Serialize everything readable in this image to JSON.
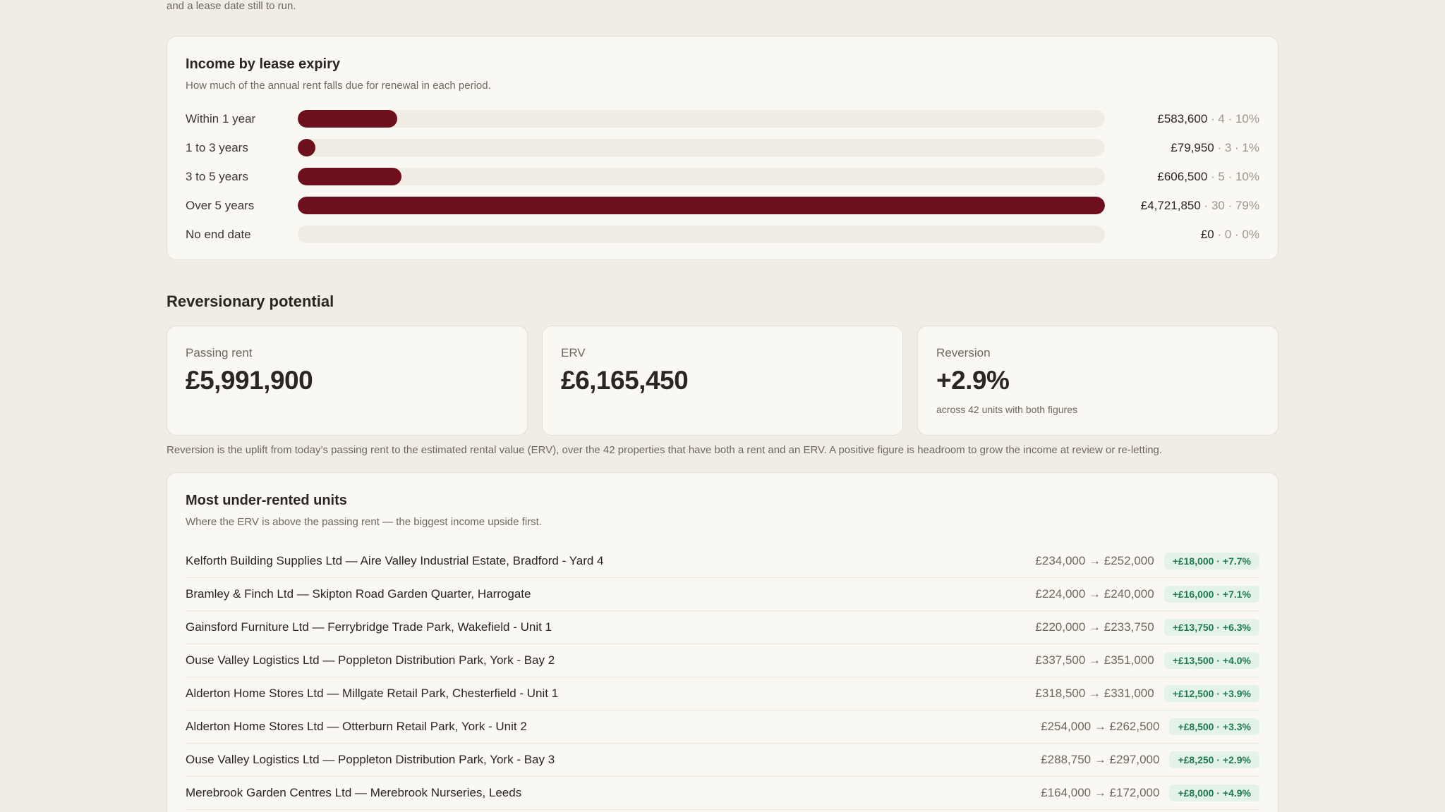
{
  "intro_text": "and a lease date still to run.",
  "income": {
    "title": "Income by lease expiry",
    "subtitle": "How much of the annual rent falls due for renewal in each period.",
    "rows": [
      {
        "label": "Within 1 year",
        "amount": "£583,600",
        "count": "4",
        "pct": "10%",
        "fraction": 0.1236
      },
      {
        "label": "1 to 3 years",
        "amount": "£79,950",
        "count": "3",
        "pct": "1%",
        "fraction": 0.0169
      },
      {
        "label": "3 to 5 years",
        "amount": "£606,500",
        "count": "5",
        "pct": "10%",
        "fraction": 0.1285
      },
      {
        "label": "Over 5 years",
        "amount": "£4,721,850",
        "count": "30",
        "pct": "79%",
        "fraction": 1.0
      },
      {
        "label": "No end date",
        "amount": "£0",
        "count": "0",
        "pct": "0%",
        "fraction": 0
      }
    ],
    "bar_color": "#6e0f1e"
  },
  "reversion": {
    "title": "Reversionary potential",
    "cards": [
      {
        "label": "Passing rent",
        "value": "£5,991,900",
        "note": ""
      },
      {
        "label": "ERV",
        "value": "£6,165,450",
        "note": ""
      },
      {
        "label": "Reversion",
        "value": "+2.9%",
        "note": "across 42 units with both figures"
      }
    ],
    "footnote": "Reversion is the uplift from today’s passing rent to the estimated rental value (ERV), over the 42 properties that have both a rent and an ERV. A positive figure is headroom to grow the income at review or re-letting."
  },
  "under_rented": {
    "title": "Most under-rented units",
    "subtitle": "Where the ERV is above the passing rent — the biggest income upside first.",
    "units": [
      {
        "name": "Kelforth Building Supplies Ltd — Aire Valley Industrial Estate, Bradford - Yard 4",
        "rent": "£234,000 → £252,000",
        "uplift": "+£18,000 · +7.7%"
      },
      {
        "name": "Bramley & Finch Ltd — Skipton Road Garden Quarter, Harrogate",
        "rent": "£224,000 → £240,000",
        "uplift": "+£16,000 · +7.1%"
      },
      {
        "name": "Gainsford Furniture Ltd — Ferrybridge Trade Park, Wakefield - Unit 1",
        "rent": "£220,000 → £233,750",
        "uplift": "+£13,750 · +6.3%"
      },
      {
        "name": "Ouse Valley Logistics Ltd — Poppleton Distribution Park, York - Bay 2",
        "rent": "£337,500 → £351,000",
        "uplift": "+£13,500 · +4.0%"
      },
      {
        "name": "Alderton Home Stores Ltd — Millgate Retail Park, Chesterfield - Unit 1",
        "rent": "£318,500 → £331,000",
        "uplift": "+£12,500 · +3.9%"
      },
      {
        "name": "Alderton Home Stores Ltd — Otterburn Retail Park, York - Unit 2",
        "rent": "£254,000 → £262,500",
        "uplift": "+£8,500 · +3.3%"
      },
      {
        "name": "Ouse Valley Logistics Ltd — Poppleton Distribution Park, York - Bay 3",
        "rent": "£288,750 → £297,000",
        "uplift": "+£8,250 · +2.9%"
      },
      {
        "name": "Merebrook Garden Centres Ltd — Merebrook Nurseries, Leeds",
        "rent": "£164,000 → £172,000",
        "uplift": "+£8,000 · +4.9%"
      }
    ]
  }
}
